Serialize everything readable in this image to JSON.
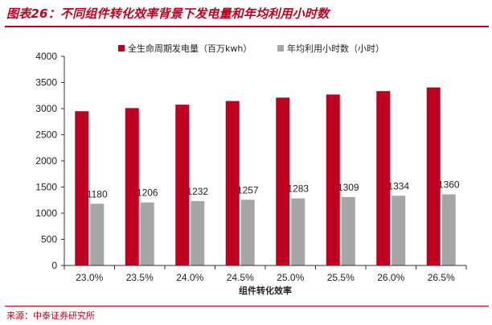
{
  "title": "图表26：不同组件转化效率背景下发电量和年均利用小时数",
  "source": "来源：中泰证券研究所",
  "chart_data": {
    "type": "bar",
    "xlabel": "组件转化效率",
    "ylabel": "",
    "ylim": [
      0,
      4000
    ],
    "yticks": [
      0,
      500,
      1000,
      1500,
      2000,
      2500,
      3000,
      3500,
      4000
    ],
    "categories": [
      "23.0%",
      "23.5%",
      "24.0%",
      "24.5%",
      "25.0%",
      "25.5%",
      "26.0%",
      "26.5%"
    ],
    "legend_position": "top",
    "grid": false,
    "series": [
      {
        "name": "全生命周期发电量（百万kwh）",
        "color": "#c00020",
        "values": [
          2950,
          3010,
          3075,
          3145,
          3210,
          3270,
          3335,
          3405
        ],
        "show_labels": false
      },
      {
        "name": "年均利用小时数（小时）",
        "color": "#a6a6a6",
        "values": [
          1180,
          1206,
          1232,
          1257,
          1283,
          1309,
          1334,
          1360
        ],
        "show_labels": true
      }
    ]
  }
}
